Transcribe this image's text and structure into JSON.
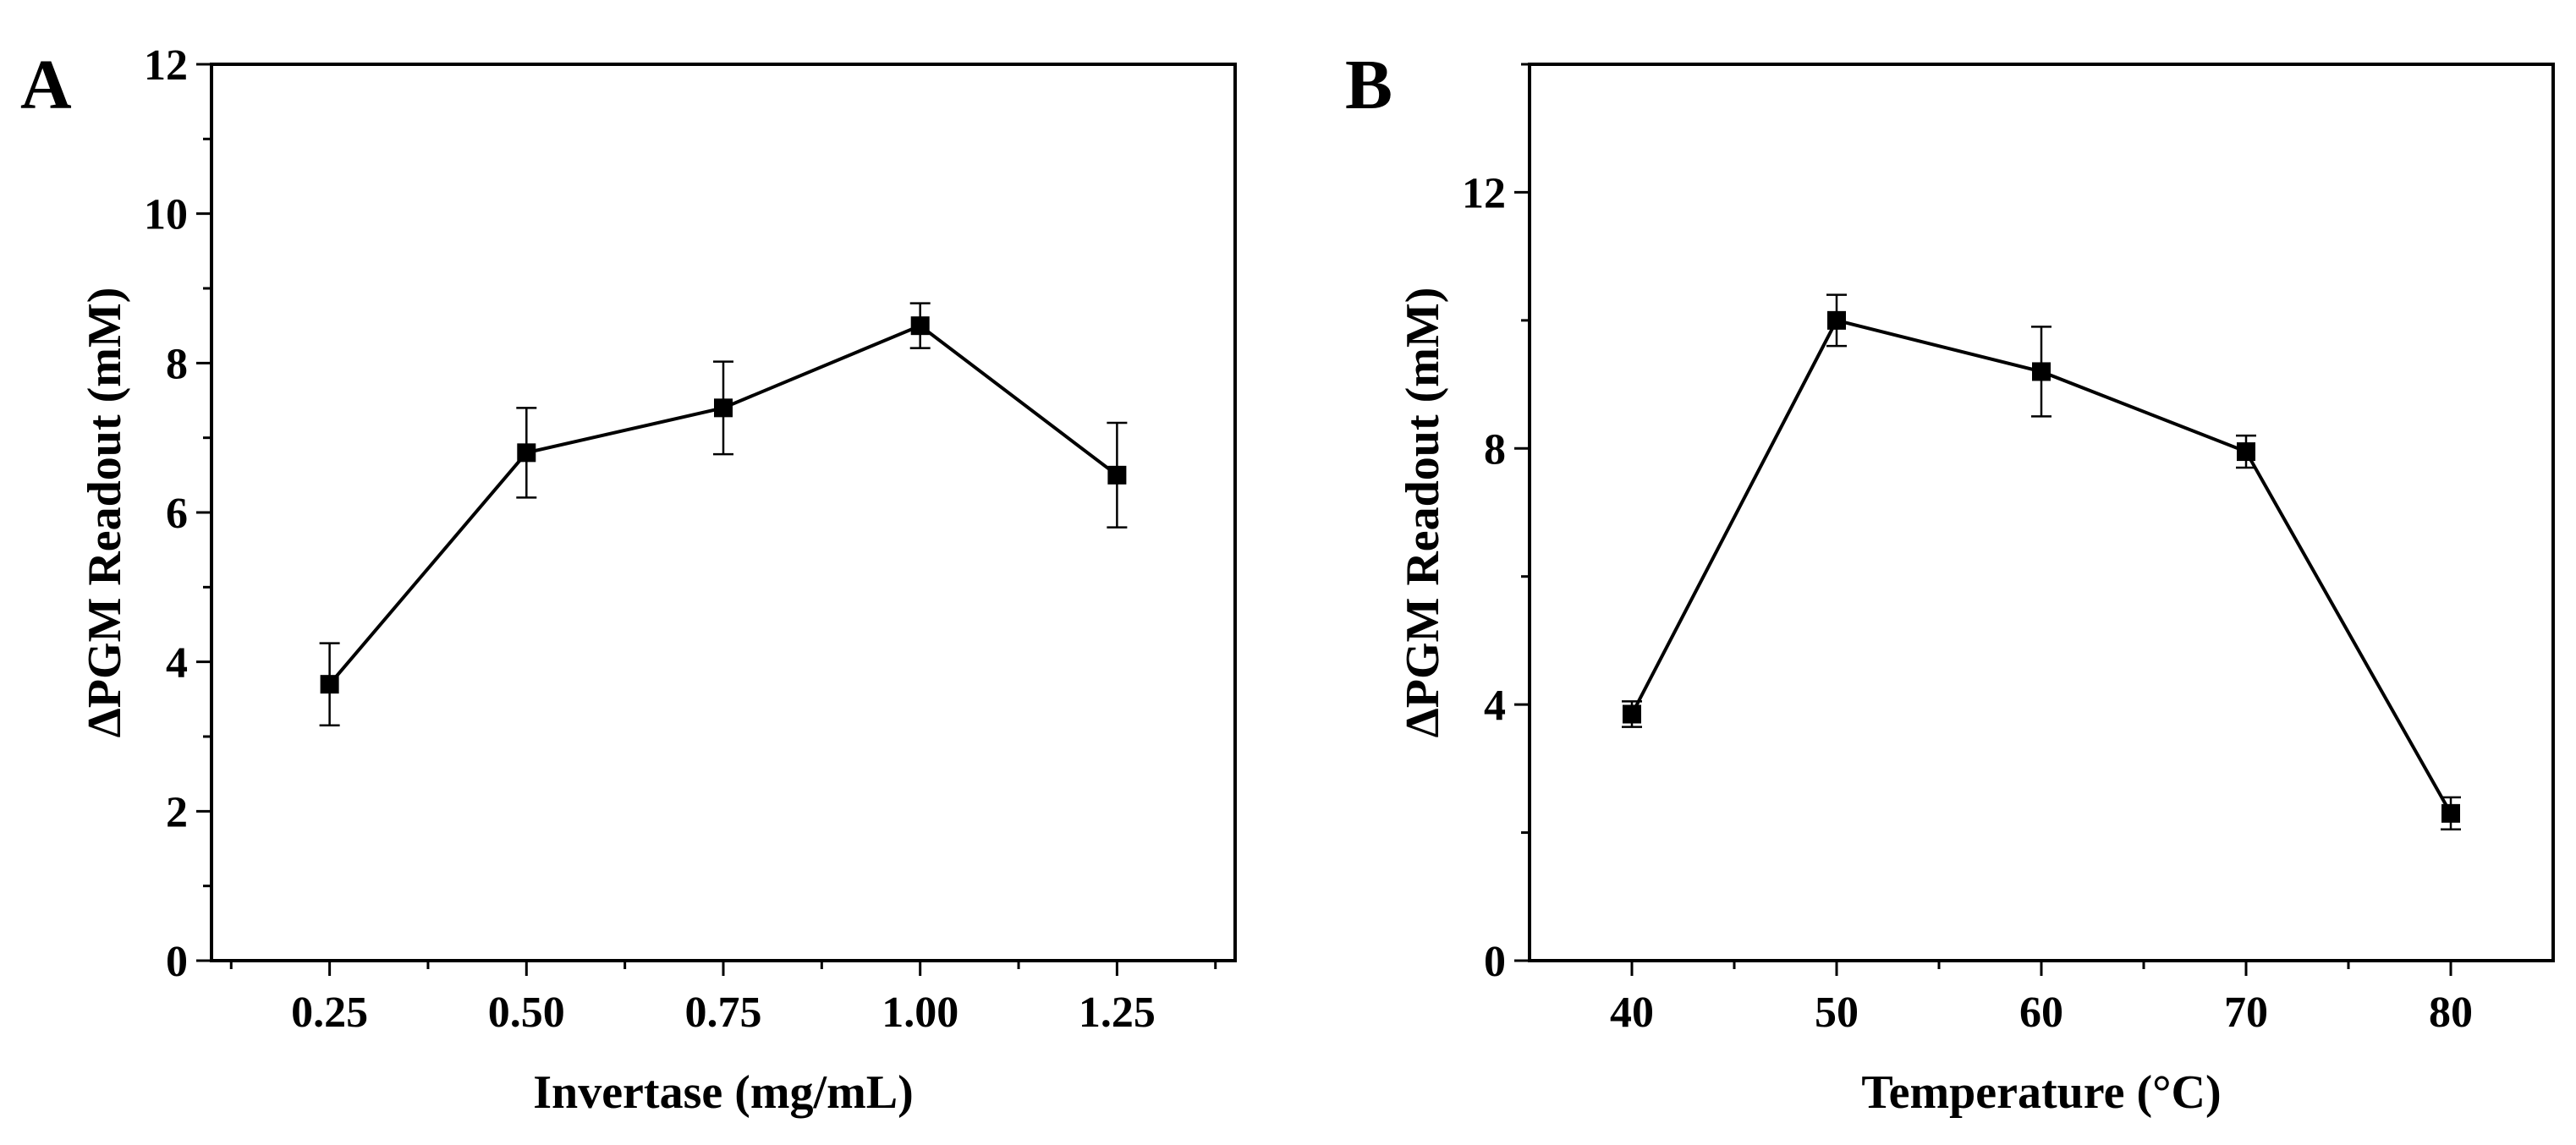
{
  "chart_data": [
    {
      "type": "line",
      "panel_label": "A",
      "x": [
        0.25,
        0.5,
        0.75,
        1.0,
        1.25
      ],
      "x_tick_labels": [
        "0.25",
        "0.50",
        "0.75",
        "1.00",
        "1.25"
      ],
      "series": [
        {
          "name": "ΔPGM Readout",
          "values": [
            3.7,
            6.8,
            7.4,
            8.5,
            6.5
          ],
          "errors": [
            0.55,
            0.6,
            0.62,
            0.3,
            0.7
          ]
        }
      ],
      "xlabel": "Invertase (mg/mL)",
      "ylabel": "ΔPGM Readout (mM)",
      "xlim": [
        0.1,
        1.4
      ],
      "ylim": [
        0,
        12
      ],
      "y_ticks": [
        0,
        2,
        4,
        6,
        8,
        10,
        12
      ],
      "y_tick_labels": [
        "0",
        "2",
        "4",
        "6",
        "8",
        "10",
        "12"
      ],
      "x_minor_ticks": [
        0.125,
        0.375,
        0.625,
        0.875,
        1.125,
        1.375
      ],
      "y_minor_ticks": [
        1,
        3,
        5,
        7,
        9,
        11
      ],
      "grid": false,
      "marker": "square"
    },
    {
      "type": "line",
      "panel_label": "B",
      "x": [
        40,
        50,
        60,
        70,
        80
      ],
      "x_tick_labels": [
        "40",
        "50",
        "60",
        "70",
        "80"
      ],
      "series": [
        {
          "name": "ΔPGM Readout",
          "values": [
            3.85,
            10.0,
            9.2,
            7.95,
            2.3
          ],
          "errors": [
            0.2,
            0.4,
            0.7,
            0.25,
            0.25
          ]
        }
      ],
      "xlabel": "Temperature (°C)",
      "ylabel": "ΔPGM Readout (mM)",
      "xlim": [
        35,
        85
      ],
      "ylim": [
        0,
        14
      ],
      "y_ticks": [
        0,
        4,
        8,
        12
      ],
      "y_tick_labels": [
        "0",
        "4",
        "8",
        "12"
      ],
      "x_minor_ticks": [
        45,
        55,
        65,
        75
      ],
      "y_minor_ticks": [
        2,
        6,
        10,
        14
      ],
      "grid": false,
      "marker": "square"
    }
  ]
}
